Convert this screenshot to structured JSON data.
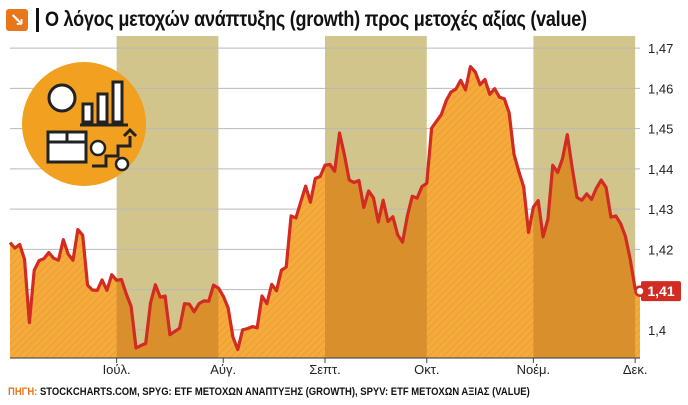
{
  "title": "Ο λόγος μετοχών ανάπτυξης (growth) προς μετοχές αξίας (value)",
  "footer": {
    "label": "ΠΗΓΗ:",
    "text": " STOCKCHARTS.COM, SPYG: ETF ΜΕΤΟΧΩΝ ΑΝΑΠΤΥΞΗΣ (GROWTH), SPYV: ETF ΜΕΤΟΧΩΝ ΑΞΙΑΣ (VALUE)"
  },
  "colors": {
    "line": "#d22b22",
    "fill_light": "#f5aa3c",
    "fill_dark": "#d98f2c",
    "band": "#d2c58c",
    "accent": "#e8761b",
    "icon_bg": "#f2a01f"
  },
  "chart_data": {
    "type": "area",
    "ylim": [
      1.393,
      1.473
    ],
    "yticks": [
      1.4,
      1.41,
      1.42,
      1.43,
      1.44,
      1.45,
      1.46,
      1.47
    ],
    "ytick_labels": [
      "1,4",
      "",
      "1,42",
      "1,43",
      "1,44",
      "1,45",
      "1,46",
      "1,47"
    ],
    "xticks": [
      {
        "label": "Ιούλ.",
        "x": 22
      },
      {
        "label": "Αύγ.",
        "x": 44
      },
      {
        "label": "Σεπτ.",
        "x": 65
      },
      {
        "label": "Οκτ.",
        "x": 86
      },
      {
        "label": "Νοέμ.",
        "x": 108
      },
      {
        "label": "Δεκ.",
        "x": 129
      }
    ],
    "shaded_ranges": [
      [
        22,
        43
      ],
      [
        65,
        86
      ],
      [
        108,
        129
      ]
    ],
    "last_value_label": "1,41",
    "x": [
      0,
      1,
      2,
      3,
      4,
      5,
      6,
      7,
      8,
      9,
      10,
      11,
      12,
      13,
      14,
      15,
      16,
      17,
      18,
      19,
      20,
      21,
      22,
      23,
      24,
      25,
      26,
      27,
      28,
      29,
      30,
      31,
      32,
      33,
      34,
      35,
      36,
      37,
      38,
      39,
      40,
      41,
      42,
      43,
      44,
      45,
      46,
      47,
      48,
      49,
      50,
      51,
      52,
      53,
      54,
      55,
      56,
      57,
      58,
      59,
      60,
      61,
      62,
      63,
      64,
      65,
      66,
      67,
      68,
      69,
      70,
      71,
      72,
      73,
      74,
      75,
      76,
      77,
      78,
      79,
      80,
      81,
      82,
      83,
      84,
      85,
      86,
      87,
      88,
      89,
      90,
      91,
      92,
      93,
      94,
      95,
      96,
      97,
      98,
      99,
      100,
      101,
      102,
      103,
      104,
      105,
      106,
      107,
      108,
      109,
      110,
      111,
      112,
      113,
      114,
      115,
      116,
      117,
      118,
      119,
      120,
      121,
      122,
      123,
      124,
      125,
      126,
      127,
      128,
      129,
      130
    ],
    "values": [
      1.4217,
      1.4203,
      1.4212,
      1.4175,
      1.4018,
      1.4148,
      1.4172,
      1.4177,
      1.4192,
      1.4178,
      1.4173,
      1.4224,
      1.4188,
      1.4173,
      1.4249,
      1.4235,
      1.4111,
      1.4099,
      1.4098,
      1.4124,
      1.4098,
      1.4137,
      1.4123,
      1.4125,
      1.4089,
      1.4058,
      1.3955,
      1.3961,
      1.3966,
      1.4067,
      1.4112,
      1.4081,
      1.4084,
      1.3988,
      1.3996,
      1.4004,
      1.4065,
      1.4064,
      1.4045,
      1.4065,
      1.4072,
      1.4071,
      1.4111,
      1.4104,
      1.4084,
      1.4055,
      1.3982,
      1.3951,
      1.4,
      1.4003,
      1.4008,
      1.4005,
      1.4084,
      1.4065,
      1.4113,
      1.4097,
      1.4148,
      1.4156,
      1.4283,
      1.4278,
      1.4318,
      1.4357,
      1.4317,
      1.4376,
      1.4381,
      1.4409,
      1.4411,
      1.4394,
      1.4489,
      1.4435,
      1.4372,
      1.4366,
      1.4371,
      1.4304,
      1.4345,
      1.4328,
      1.4268,
      1.4322,
      1.4269,
      1.4281,
      1.4236,
      1.4218,
      1.4283,
      1.4332,
      1.4327,
      1.4356,
      1.4364,
      1.4501,
      1.4518,
      1.4535,
      1.4569,
      1.4591,
      1.4598,
      1.462,
      1.4596,
      1.4654,
      1.4641,
      1.4609,
      1.4622,
      1.4585,
      1.4599,
      1.4578,
      1.4574,
      1.4539,
      1.4436,
      1.4393,
      1.4355,
      1.4242,
      1.4305,
      1.4321,
      1.4231,
      1.4275,
      1.4409,
      1.4391,
      1.4425,
      1.4485,
      1.4403,
      1.4329,
      1.4322,
      1.4338,
      1.4324,
      1.4352,
      1.4372,
      1.4354,
      1.428,
      1.4283,
      1.4264,
      1.4232,
      1.4174,
      1.4101,
      1.4096
    ]
  }
}
